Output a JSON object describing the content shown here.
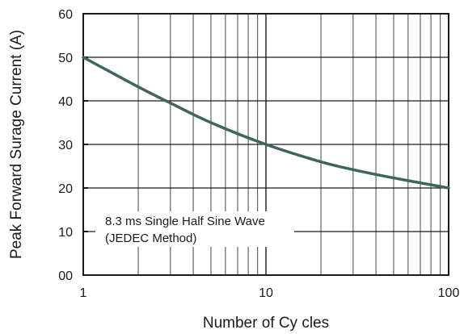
{
  "chart_data": {
    "type": "line",
    "xscale": "log",
    "xlim": [
      1,
      100
    ],
    "ylim": [
      0,
      60
    ],
    "x_ticks": [
      1,
      10,
      100
    ],
    "x_tick_labels": [
      "1",
      "10",
      "100"
    ],
    "y_ticks": [
      0,
      10,
      20,
      30,
      40,
      50,
      60
    ],
    "y_tick_labels": [
      "00",
      "10",
      "20",
      "30",
      "40",
      "50",
      "60"
    ],
    "xlabel": "Number of Cy cles",
    "ylabel": "Peak Forward Surage Current (A)",
    "grid": true,
    "series": [
      {
        "color": "#3f6560",
        "x": [
          1,
          2,
          3,
          5,
          10,
          20,
          30,
          50,
          100
        ],
        "y": [
          50,
          43.2,
          39.5,
          35.0,
          30.0,
          26.0,
          24.2,
          22.3,
          20.0
        ]
      }
    ],
    "annotations": [
      "8.3 ms Single Half Sine Wave",
      "(JEDEC Method)"
    ]
  }
}
